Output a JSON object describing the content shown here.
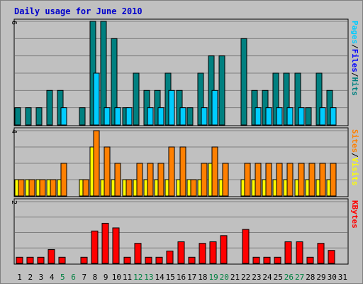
{
  "chart_data": {
    "type": "bar",
    "title": "Daily usage for June 2010",
    "categories": [
      "1",
      "2",
      "3",
      "4",
      "5",
      "6",
      "7",
      "8",
      "9",
      "10",
      "11",
      "12",
      "13",
      "14",
      "15",
      "16",
      "17",
      "18",
      "19",
      "20",
      "21",
      "22",
      "23",
      "24",
      "25",
      "26",
      "27",
      "28",
      "29",
      "30",
      "31"
    ],
    "weekend_days": [
      "5",
      "6",
      "12",
      "13",
      "19",
      "20",
      "26",
      "27"
    ],
    "panels": [
      {
        "id": "hits",
        "ymax": 6,
        "ylabel_top": "6",
        "side_label": [
          {
            "text": "Pages",
            "color": "#00ccff"
          },
          {
            "text": "/",
            "color": "#000000"
          },
          {
            "text": "Files",
            "color": "#0000ff"
          },
          {
            "text": "/",
            "color": "#000000"
          },
          {
            "text": "Hits",
            "color": "#008080"
          }
        ],
        "series": [
          {
            "name": "Hits",
            "color": "#008080",
            "values": [
              1,
              1,
              1,
              2,
              2,
              0,
              1,
              6,
              6,
              5,
              1,
              3,
              2,
              2,
              3,
              2,
              1,
              3,
              4,
              4,
              0,
              5,
              2,
              2,
              3,
              3,
              3,
              1,
              3,
              2,
              0
            ]
          },
          {
            "name": "Files",
            "color": "#00ccff",
            "values": [
              0,
              0,
              0,
              0,
              1,
              0,
              0,
              3,
              1,
              1,
              1,
              0,
              1,
              1,
              2,
              1,
              0,
              1,
              2,
              0,
              0,
              0,
              1,
              1,
              1,
              1,
              1,
              0,
              1,
              1,
              0
            ]
          }
        ]
      },
      {
        "id": "visits",
        "ymax": 4,
        "ylabel_top": "4",
        "side_label": [
          {
            "text": "Sites",
            "color": "#ff8000"
          },
          {
            "text": "/",
            "color": "#000000"
          },
          {
            "text": "Visits",
            "color": "#ffff00"
          }
        ],
        "series": [
          {
            "name": "Visits",
            "color": "#ffff00",
            "values": [
              1,
              1,
              1,
              1,
              1,
              0,
              1,
              3,
              1,
              1,
              1,
              1,
              1,
              1,
              1,
              1,
              1,
              1,
              2,
              1,
              0,
              1,
              1,
              1,
              1,
              1,
              1,
              1,
              1,
              1,
              0
            ]
          },
          {
            "name": "Sites",
            "color": "#ff8000",
            "values": [
              1,
              1,
              1,
              1,
              2,
              0,
              1,
              4,
              3,
              2,
              1,
              2,
              2,
              2,
              3,
              3,
              1,
              2,
              3,
              2,
              0,
              2,
              2,
              2,
              2,
              2,
              2,
              2,
              2,
              2,
              0
            ]
          }
        ]
      },
      {
        "id": "kbytes",
        "ymax": 2,
        "ylabel_top": "2",
        "side_label": [
          {
            "text": "KBytes",
            "color": "#ff0000"
          }
        ],
        "series": [
          {
            "name": "KBytes",
            "color": "#ff0000",
            "values": [
              0.2,
              0.2,
              0.2,
              0.45,
              0.2,
              0,
              0.2,
              1.05,
              1.3,
              1.15,
              0.2,
              0.65,
              0.2,
              0.2,
              0.4,
              0.7,
              0.2,
              0.65,
              0.7,
              0.9,
              0,
              1.1,
              0.2,
              0.2,
              0.2,
              0.7,
              0.7,
              0.2,
              0.65,
              0.42,
              0
            ]
          }
        ]
      }
    ]
  }
}
